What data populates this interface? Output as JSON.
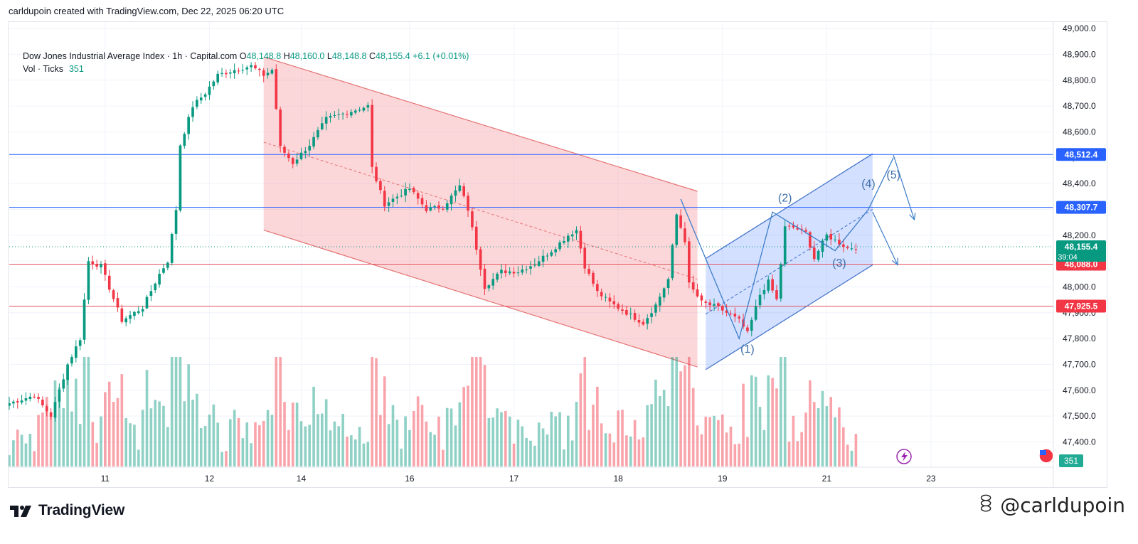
{
  "header": {
    "credit": "carldupoin created with TradingView.com, Dec 22, 2025 06:20 UTC"
  },
  "legend": {
    "symbol": "Dow Jones Industrial Average Index · 1h · Capital.com",
    "open_label": "O",
    "open": "48,148.8",
    "high_label": "H",
    "high": "48,160.0",
    "low_label": "L",
    "low": "48,148.8",
    "close_label": "C",
    "close": "48,155.4",
    "change": "+6.1 (+0.01%)",
    "vol_label": "Vol · Ticks",
    "vol_value": "351"
  },
  "footer": {
    "logo_text": "TradingView",
    "watermark": "@carldupoin"
  },
  "chart_data": {
    "type": "candlestick",
    "title": "Dow Jones Industrial Average Index · 1h · Capital.com",
    "ylim": [
      47305,
      49025
    ],
    "y_ticks": [
      47400,
      47500,
      47600,
      47700,
      47800,
      47900,
      48000,
      48100,
      48200,
      48300,
      48400,
      48500,
      48600,
      48700,
      48800,
      48900,
      49000
    ],
    "y_tick_labels": [
      "47,400.0",
      "47,500.0",
      "47,600.0",
      "47,700.0",
      "47,800.0",
      "47,900.0",
      "48,000.0",
      "48,100.0",
      "48,200.0",
      "48,300.0",
      "48,400.0",
      "48,500.0",
      "48,600.0",
      "48,700.0",
      "48,800.0",
      "48,900.0",
      "49,000.0"
    ],
    "x_range": [
      0,
      250
    ],
    "x_ticks": [
      {
        "i": 23,
        "label": "11"
      },
      {
        "i": 48,
        "label": "12"
      },
      {
        "i": 70,
        "label": "14"
      },
      {
        "i": 96,
        "label": "16"
      },
      {
        "i": 121,
        "label": "17"
      },
      {
        "i": 146,
        "label": "18"
      },
      {
        "i": 171,
        "label": "19"
      },
      {
        "i": 196,
        "label": "21"
      },
      {
        "i": 221,
        "label": "23"
      }
    ],
    "levels": [
      {
        "value": 48512.4,
        "label": "48,512.4",
        "kind": "blue"
      },
      {
        "value": 48307.7,
        "label": "48,307.7",
        "kind": "blue"
      },
      {
        "value": 48088.0,
        "label": "48,088.0",
        "kind": "red"
      },
      {
        "value": 47925.5,
        "label": "47,925.5",
        "kind": "red"
      }
    ],
    "last_price": {
      "value": 48155.4,
      "label": "48,155.4",
      "countdown": "39:04"
    },
    "volume_badge": "351",
    "keypoints": [
      [
        0,
        47550
      ],
      [
        6,
        47580
      ],
      [
        10,
        47500
      ],
      [
        14,
        47700
      ],
      [
        17,
        47800
      ],
      [
        19,
        48100
      ],
      [
        22,
        48080
      ],
      [
        27,
        47870
      ],
      [
        32,
        47920
      ],
      [
        36,
        48050
      ],
      [
        38,
        48100
      ],
      [
        40,
        48300
      ],
      [
        41,
        48550
      ],
      [
        44,
        48700
      ],
      [
        47,
        48750
      ],
      [
        50,
        48820
      ],
      [
        54,
        48840
      ],
      [
        58,
        48855
      ],
      [
        61,
        48820
      ],
      [
        63,
        48840
      ],
      [
        65,
        48540
      ],
      [
        68,
        48480
      ],
      [
        72,
        48550
      ],
      [
        76,
        48650
      ],
      [
        82,
        48680
      ],
      [
        86,
        48700
      ],
      [
        87,
        48460
      ],
      [
        90,
        48320
      ],
      [
        96,
        48380
      ],
      [
        100,
        48300
      ],
      [
        104,
        48310
      ],
      [
        108,
        48390
      ],
      [
        110,
        48300
      ],
      [
        114,
        48000
      ],
      [
        118,
        48060
      ],
      [
        122,
        48060
      ],
      [
        126,
        48090
      ],
      [
        130,
        48140
      ],
      [
        134,
        48200
      ],
      [
        136,
        48220
      ],
      [
        138,
        48080
      ],
      [
        141,
        47980
      ],
      [
        144,
        47940
      ],
      [
        148,
        47900
      ],
      [
        152,
        47860
      ],
      [
        155,
        47930
      ],
      [
        158,
        48030
      ],
      [
        160,
        48280
      ],
      [
        162,
        48180
      ],
      [
        163,
        48010
      ],
      [
        166,
        47940
      ],
      [
        170,
        47920
      ],
      [
        175,
        47870
      ],
      [
        177,
        47820
      ],
      [
        180,
        47970
      ],
      [
        182,
        48020
      ],
      [
        184,
        47950
      ],
      [
        186,
        48230
      ],
      [
        188,
        48230
      ],
      [
        191,
        48210
      ],
      [
        193,
        48110
      ],
      [
        196,
        48200
      ],
      [
        199,
        48170
      ],
      [
        201,
        48150
      ],
      [
        203,
        48155
      ]
    ],
    "channel_upper": [
      [
        61,
        48890
      ],
      [
        165,
        48370
      ]
    ],
    "channel_lower": [
      [
        61,
        48220
      ],
      [
        165,
        47690
      ]
    ],
    "channel_mid": [
      [
        61,
        48560
      ],
      [
        165,
        48030
      ]
    ],
    "rising_upper": [
      [
        167,
        48110
      ],
      [
        207,
        48515
      ]
    ],
    "rising_lower": [
      [
        167,
        47680
      ],
      [
        207,
        48085
      ]
    ],
    "rising_mid": [
      [
        167,
        47895
      ],
      [
        207,
        48300
      ]
    ],
    "wave_path": [
      [
        161,
        48340
      ],
      [
        175,
        47800
      ],
      [
        183,
        48290
      ],
      [
        198,
        48140
      ],
      [
        206,
        48300
      ],
      [
        212,
        48500
      ]
    ],
    "wave_labels": [
      {
        "label": "(1)",
        "i": 177,
        "value": 47745
      },
      {
        "label": "(2)",
        "i": 186,
        "value": 48330
      },
      {
        "label": "(3)",
        "i": 199,
        "value": 48078
      },
      {
        "label": "(4)",
        "i": 206,
        "value": 48385
      },
      {
        "label": "(5)",
        "i": 212,
        "value": 48420
      }
    ],
    "projection_arrows": [
      [
        [
          212,
          48510
        ],
        [
          217,
          48260
        ]
      ],
      [
        [
          207,
          48290
        ],
        [
          213,
          48085
        ]
      ]
    ]
  }
}
